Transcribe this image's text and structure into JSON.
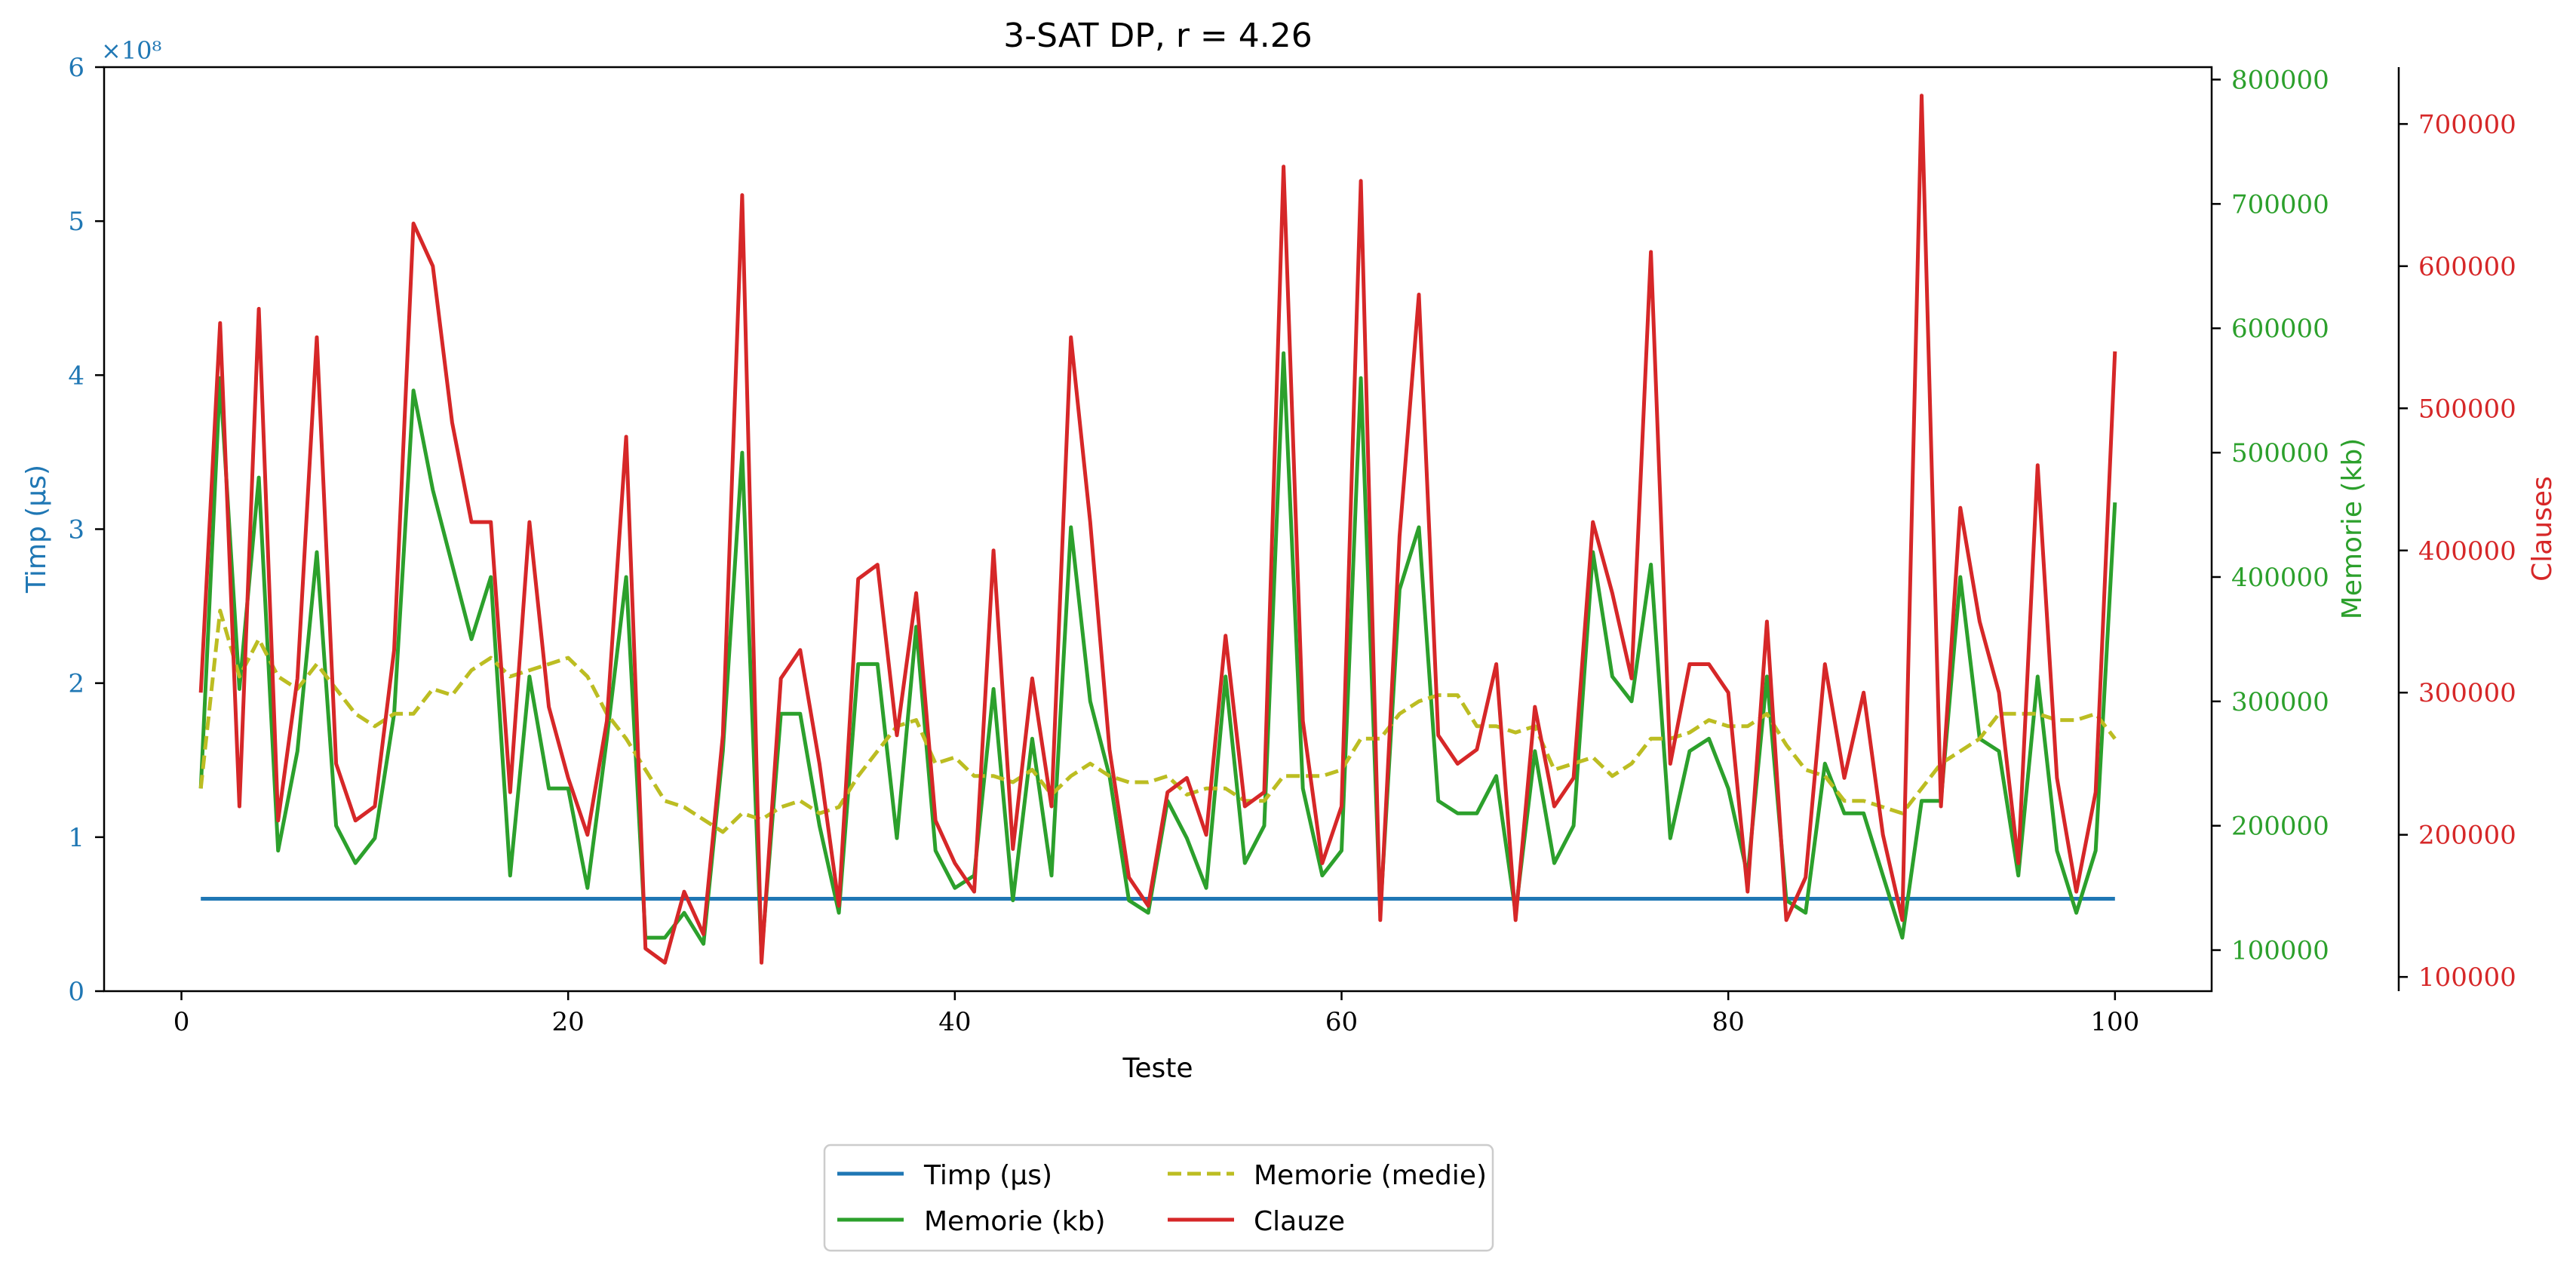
{
  "chart_data": {
    "type": "line",
    "title": "3-SAT DP, r = 4.26",
    "xlabel": "Teste",
    "xlim": [
      -4,
      105
    ],
    "xticks": [
      0,
      20,
      40,
      60,
      80,
      100
    ],
    "axes": {
      "left": {
        "label": "Timp (μs)",
        "color": "#1f77b4",
        "ylim": [
          0,
          6
        ],
        "ticks": [
          0,
          1,
          2,
          3,
          4,
          5,
          6
        ],
        "multiplier": "×10⁸"
      },
      "right1": {
        "label": "Memorie (kb)",
        "color": "#2ca02c",
        "ylim": [
          67000,
          810000
        ],
        "ticks": [
          100000,
          200000,
          300000,
          400000,
          500000,
          600000,
          700000,
          800000
        ]
      },
      "right2": {
        "label": "Clauses",
        "color": "#d62728",
        "ylim": [
          90000,
          740000
        ],
        "ticks": [
          100000,
          200000,
          300000,
          400000,
          500000,
          600000,
          700000
        ]
      }
    },
    "x": [
      1,
      2,
      3,
      4,
      5,
      6,
      7,
      8,
      9,
      10,
      11,
      12,
      13,
      14,
      15,
      16,
      17,
      18,
      19,
      20,
      21,
      22,
      23,
      24,
      25,
      26,
      27,
      28,
      29,
      30,
      31,
      32,
      33,
      34,
      35,
      36,
      37,
      38,
      39,
      40,
      41,
      42,
      43,
      44,
      45,
      46,
      47,
      48,
      49,
      50,
      51,
      52,
      53,
      54,
      55,
      56,
      57,
      58,
      59,
      60,
      61,
      62,
      63,
      64,
      65,
      66,
      67,
      68,
      69,
      70,
      71,
      72,
      73,
      74,
      75,
      76,
      77,
      78,
      79,
      80,
      81,
      82,
      83,
      84,
      85,
      86,
      87,
      88,
      89,
      90,
      91,
      92,
      93,
      94,
      95,
      96,
      97,
      98,
      99,
      100
    ],
    "series": [
      {
        "name": "Timp (μs)",
        "axis": "left",
        "color": "#1f77b4",
        "dash": "solid",
        "values": [
          0.6,
          0.6,
          0.6,
          0.6,
          0.6,
          0.6,
          0.6,
          0.6,
          0.6,
          0.6,
          0.6,
          0.6,
          0.6,
          0.6,
          0.6,
          0.6,
          0.6,
          0.6,
          0.6,
          0.6,
          0.6,
          0.6,
          0.6,
          0.6,
          0.6,
          0.6,
          0.6,
          0.6,
          0.6,
          0.6,
          0.6,
          0.6,
          0.6,
          0.6,
          0.6,
          0.6,
          0.6,
          0.6,
          0.6,
          0.6,
          0.6,
          0.6,
          0.6,
          0.6,
          0.6,
          0.6,
          0.6,
          0.6,
          0.6,
          0.6,
          0.6,
          0.6,
          0.6,
          0.6,
          0.6,
          0.6,
          0.6,
          0.6,
          0.6,
          0.6,
          0.6,
          0.6,
          0.6,
          0.6,
          0.6,
          0.6,
          0.6,
          0.6,
          0.6,
          0.6,
          0.6,
          0.6,
          0.6,
          0.6,
          0.6,
          0.6,
          0.6,
          0.6,
          0.6,
          0.6,
          0.6,
          0.6,
          0.6,
          0.6,
          0.6,
          0.6,
          0.6,
          0.6,
          0.6,
          0.6,
          0.6,
          0.6,
          0.6,
          0.6,
          0.6,
          0.6,
          0.6,
          0.6,
          0.6,
          0.6
        ]
      },
      {
        "name": "Memorie (kb)",
        "axis": "right1",
        "color": "#2ca02c",
        "dash": "solid",
        "values": [
          230000,
          560000,
          310000,
          480000,
          180000,
          260000,
          420000,
          200000,
          170000,
          190000,
          290000,
          550000,
          470000,
          410000,
          350000,
          400000,
          160000,
          320000,
          230000,
          230000,
          150000,
          270000,
          400000,
          110000,
          110000,
          130000,
          105000,
          260000,
          500000,
          95000,
          290000,
          290000,
          200000,
          130000,
          330000,
          330000,
          190000,
          360000,
          180000,
          150000,
          160000,
          310000,
          140000,
          270000,
          160000,
          440000,
          300000,
          240000,
          140000,
          130000,
          220000,
          190000,
          150000,
          320000,
          170000,
          200000,
          580000,
          230000,
          160000,
          180000,
          560000,
          130000,
          390000,
          440000,
          220000,
          210000,
          210000,
          240000,
          130000,
          260000,
          170000,
          200000,
          420000,
          320000,
          300000,
          410000,
          190000,
          260000,
          270000,
          230000,
          160000,
          320000,
          140000,
          130000,
          250000,
          210000,
          210000,
          160000,
          110000,
          220000,
          220000,
          400000,
          270000,
          260000,
          160000,
          320000,
          180000,
          130000,
          180000,
          460000
        ]
      },
      {
        "name": "Memorie (medie)",
        "axis": "right1",
        "color": "#bcbd22",
        "dash": "dashed",
        "values": [
          230000,
          373000,
          320000,
          350000,
          320000,
          310000,
          330000,
          310000,
          290000,
          280000,
          290000,
          290000,
          310000,
          305000,
          325000,
          335000,
          320000,
          325000,
          330000,
          335000,
          320000,
          290000,
          270000,
          245000,
          220000,
          215000,
          205000,
          195000,
          210000,
          205000,
          215000,
          220000,
          210000,
          215000,
          240000,
          260000,
          280000,
          285000,
          250000,
          255000,
          240000,
          240000,
          235000,
          245000,
          225000,
          240000,
          250000,
          240000,
          235000,
          235000,
          240000,
          225000,
          230000,
          230000,
          220000,
          220000,
          240000,
          240000,
          240000,
          245000,
          270000,
          270000,
          290000,
          300000,
          305000,
          305000,
          280000,
          280000,
          275000,
          280000,
          245000,
          250000,
          255000,
          240000,
          250000,
          270000,
          270000,
          275000,
          285000,
          280000,
          280000,
          290000,
          265000,
          245000,
          240000,
          220000,
          220000,
          215000,
          210000,
          230000,
          250000,
          260000,
          270000,
          290000,
          290000,
          290000,
          285000,
          285000,
          290000,
          270000
        ]
      },
      {
        "name": "Clauze",
        "axis": "right2",
        "color": "#d62728",
        "dash": "solid",
        "values": [
          300000,
          560000,
          220000,
          570000,
          210000,
          310000,
          550000,
          250000,
          210000,
          220000,
          330000,
          630000,
          600000,
          490000,
          420000,
          420000,
          230000,
          420000,
          290000,
          240000,
          200000,
          280000,
          480000,
          120000,
          110000,
          160000,
          130000,
          270000,
          650000,
          110000,
          310000,
          330000,
          250000,
          150000,
          380000,
          390000,
          270000,
          370000,
          210000,
          180000,
          160000,
          400000,
          190000,
          310000,
          220000,
          550000,
          420000,
          260000,
          170000,
          150000,
          230000,
          240000,
          200000,
          340000,
          220000,
          230000,
          670000,
          280000,
          180000,
          220000,
          660000,
          140000,
          410000,
          580000,
          270000,
          250000,
          260000,
          320000,
          140000,
          290000,
          220000,
          240000,
          420000,
          370000,
          310000,
          610000,
          250000,
          320000,
          320000,
          300000,
          160000,
          350000,
          140000,
          170000,
          320000,
          240000,
          300000,
          200000,
          140000,
          720000,
          220000,
          430000,
          350000,
          300000,
          180000,
          460000,
          240000,
          160000,
          230000,
          540000
        ]
      }
    ],
    "legend": {
      "placement": "bottom-center",
      "entries": [
        "Timp (μs)",
        "Memorie (medie)",
        "Memorie (kb)",
        "Clauze"
      ]
    }
  }
}
